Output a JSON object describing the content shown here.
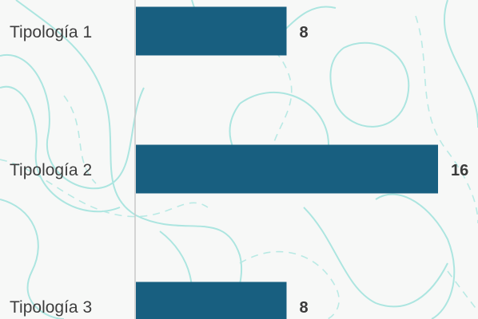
{
  "chart_data": {
    "type": "bar",
    "orientation": "horizontal",
    "categories": [
      "Tipología 1",
      "Tipología 2",
      "Tipología 3"
    ],
    "values": [
      8,
      16,
      8
    ],
    "title": "",
    "xlabel": "",
    "ylabel": "",
    "xlim": [
      0,
      16
    ],
    "grid": false,
    "data_labels": true
  },
  "colors": {
    "bar": "#185f80",
    "axis": "#c8c8c8",
    "contour": "#9fe3dd",
    "background": "#f7f8f7"
  }
}
